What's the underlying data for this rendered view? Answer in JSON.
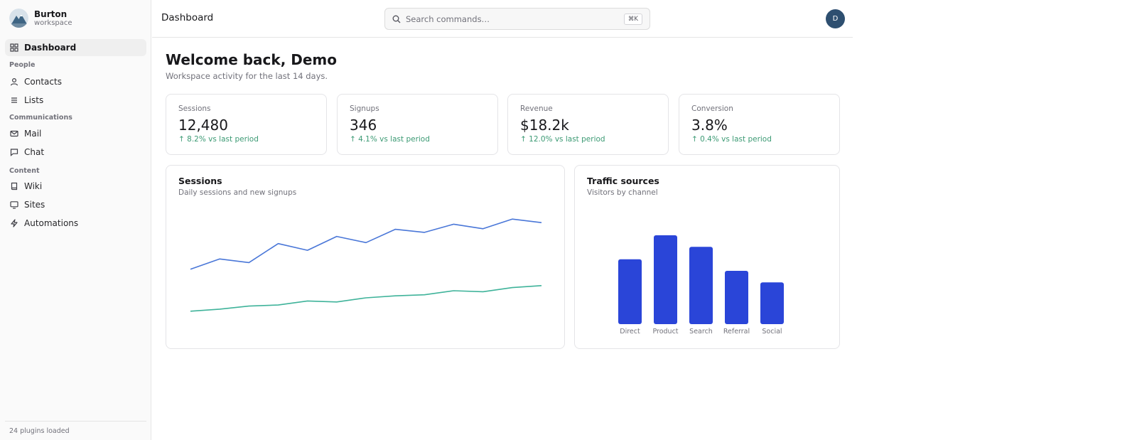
{
  "brand": {
    "name": "Burton",
    "sub": "workspace"
  },
  "sidebar": {
    "dashboard": "Dashboard",
    "sections": {
      "people": "People",
      "communications": "Communications",
      "content": "Content"
    },
    "items": {
      "contacts": "Contacts",
      "lists": "Lists",
      "mail": "Mail",
      "chat": "Chat",
      "wiki": "Wiki",
      "sites": "Sites",
      "automations": "Automations"
    },
    "footer": "24 plugins loaded"
  },
  "header": {
    "title": "Dashboard",
    "search_placeholder": "Search commands…",
    "search_shortcut": "⌘K",
    "avatar_initial": "D"
  },
  "welcome": {
    "title": "Welcome back, Demo",
    "subtitle": "Workspace activity for the last 14 days."
  },
  "stats": [
    {
      "label": "Sessions",
      "value": "12,480",
      "delta": "↑ 8.2% vs last period"
    },
    {
      "label": "Signups",
      "value": "346",
      "delta": "↑ 4.1% vs last period"
    },
    {
      "label": "Revenue",
      "value": "$18.2k",
      "delta": "↑ 12.0% vs last period"
    },
    {
      "label": "Conversion",
      "value": "3.8%",
      "delta": "↑ 0.4% vs last period"
    }
  ],
  "panels": {
    "sessions": {
      "title": "Sessions",
      "subtitle": "Daily sessions and new signups"
    },
    "traffic": {
      "title": "Traffic sources",
      "subtitle": "Visitors by channel"
    }
  },
  "colors": {
    "sessions_line": "#4a77d8",
    "signups_line": "#3fb39a",
    "bar": "#2a45d8",
    "delta_positive": "#3c9a74",
    "avatar": "#2e4f70"
  },
  "chart_data": [
    {
      "type": "line",
      "x": [
        1,
        2,
        3,
        4,
        5,
        6,
        7,
        8,
        9,
        10,
        11,
        12,
        13
      ],
      "series": [
        {
          "values": [
            620,
            720,
            685,
            870,
            805,
            940,
            880,
            1010,
            980,
            1060,
            1015,
            1110,
            1075
          ]
        },
        {
          "values": [
            210,
            230,
            260,
            270,
            310,
            300,
            340,
            360,
            370,
            410,
            400,
            440,
            460
          ]
        }
      ],
      "ylim": [
        0,
        1250
      ],
      "grid": false
    },
    {
      "type": "bar",
      "categories": [
        "Direct",
        "Product",
        "Search",
        "Referral",
        "Social"
      ],
      "values": [
        84,
        115,
        100,
        69,
        54
      ],
      "ylim": [
        0,
        115
      ],
      "grid": false
    }
  ]
}
